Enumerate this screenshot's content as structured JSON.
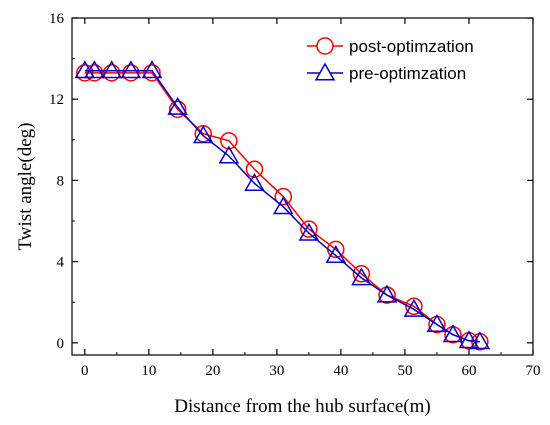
{
  "chart_data": {
    "type": "line",
    "xlabel": "Distance from the hub surface(m)",
    "ylabel": "Twist angle(deg)",
    "xlim": [
      -2,
      70
    ],
    "ylim": [
      -0.6,
      16
    ],
    "xticks": [
      0,
      10,
      20,
      30,
      40,
      50,
      60,
      70
    ],
    "yticks": [
      0,
      4,
      8,
      12,
      16
    ],
    "legend_position": "top-right",
    "grid": false,
    "series": [
      {
        "name": "post-optimzation",
        "color": "#ff0000",
        "marker": "circle",
        "x": [
          0,
          1.5,
          4.2,
          7.2,
          10.5,
          14.5,
          18.5,
          22.5,
          26.5,
          31,
          35,
          39.2,
          43.2,
          47.2,
          51.4,
          55,
          57.5,
          60,
          61.7
        ],
        "y": [
          13.3,
          13.3,
          13.3,
          13.3,
          13.3,
          11.5,
          10.3,
          9.95,
          8.55,
          7.2,
          5.6,
          4.6,
          3.4,
          2.35,
          1.8,
          0.9,
          0.4,
          0.1,
          0.05
        ]
      },
      {
        "name": "pre-optimzation",
        "color": "#0000cc",
        "marker": "triangle",
        "x": [
          0,
          1.5,
          4.2,
          7.2,
          10.5,
          14.5,
          18.5,
          22.5,
          26.5,
          31,
          35,
          39.2,
          43.2,
          47.2,
          51.4,
          55,
          57.5,
          60,
          61.7
        ],
        "y": [
          13.4,
          13.4,
          13.4,
          13.4,
          13.4,
          11.6,
          10.2,
          9.2,
          7.85,
          6.7,
          5.4,
          4.3,
          3.2,
          2.35,
          1.65,
          0.9,
          0.4,
          0.1,
          0.05
        ]
      }
    ]
  }
}
